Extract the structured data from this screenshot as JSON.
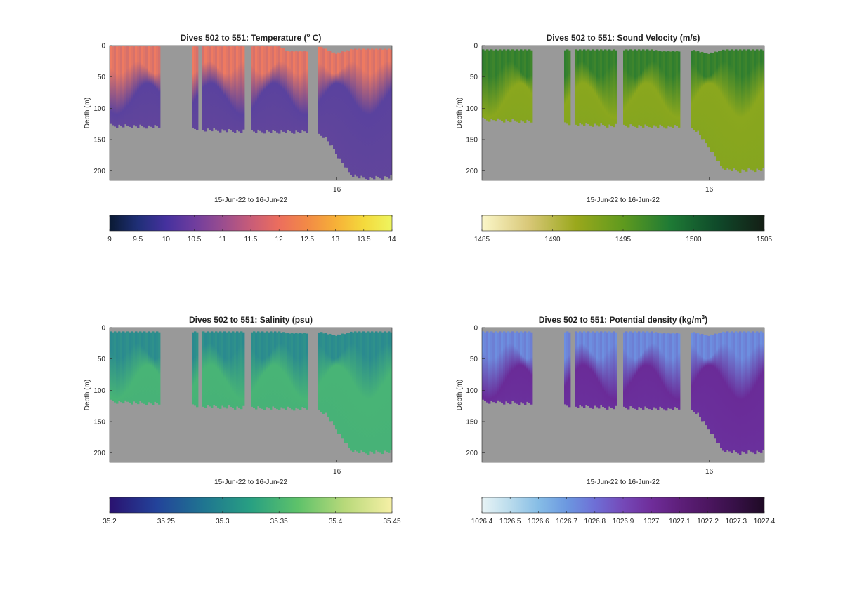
{
  "figure": {
    "background": "#ffffff",
    "mask_color": "#999999"
  },
  "chart_data": [
    {
      "type": "heatmap",
      "title": {
        "main": "Dives 502 to 551: Temperature (",
        "sup": "o",
        "tail": " C)"
      },
      "xlabel": "15-Jun-22 to 16-Jun-22",
      "ylabel": "Depth (m)",
      "xticks": [
        {
          "label": "16",
          "frac": 0.805
        }
      ],
      "yticks": [
        0,
        50,
        100,
        150,
        200
      ],
      "ylim": [
        0,
        215
      ],
      "colorbar": {
        "ticks": [
          "9",
          "9.5",
          "10",
          "10.5",
          "11",
          "11.5",
          "12",
          "12.5",
          "13",
          "13.5",
          "14"
        ],
        "colors": [
          "#0a1a33",
          "#1f2f77",
          "#45319e",
          "#6f3d9e",
          "#9a4d8f",
          "#c85c78",
          "#ec6e5d",
          "#f28a46",
          "#f6b038",
          "#f4d93c",
          "#eef560"
        ]
      },
      "surface": {
        "color": "#ee7a61",
        "depth": [
          25,
          45
        ]
      },
      "deep": {
        "color": "#5a429e",
        "depth": [
          60,
          110
        ]
      },
      "gaps": [
        [
          0.18,
          0.26
        ],
        [
          0.262,
          0.29
        ],
        [
          0.31,
          0.33
        ],
        [
          0.48,
          0.5
        ],
        [
          0.7,
          0.74
        ]
      ],
      "bottom": [
        [
          0.0,
          128
        ],
        [
          0.18,
          130
        ],
        [
          0.45,
          137
        ],
        [
          0.72,
          138
        ],
        [
          0.76,
          145
        ],
        [
          0.8,
          170
        ],
        [
          0.85,
          205
        ],
        [
          0.9,
          212
        ],
        [
          1.0,
          210
        ]
      ],
      "top": [
        [
          0.0,
          0
        ],
        [
          0.6,
          0
        ],
        [
          0.63,
          8
        ],
        [
          0.7,
          8
        ],
        [
          0.74,
          0
        ],
        [
          0.8,
          12
        ],
        [
          0.86,
          5
        ],
        [
          1.0,
          5
        ]
      ]
    },
    {
      "type": "heatmap",
      "title": {
        "main": "Dives 502 to 551: Sound Velocity (m/s)",
        "sup": "",
        "tail": ""
      },
      "xlabel": "15-Jun-22 to 16-Jun-22",
      "ylabel": "Depth (m)",
      "xticks": [
        {
          "label": "16",
          "frac": 0.805
        }
      ],
      "yticks": [
        0,
        50,
        100,
        150,
        200
      ],
      "ylim": [
        0,
        215
      ],
      "colorbar": {
        "ticks": [
          "1485",
          "1490",
          "1495",
          "1500",
          "1505"
        ],
        "colors": [
          "#fbf7c9",
          "#d8c777",
          "#9aa81c",
          "#5f9a1e",
          "#1e7a35",
          "#0f4a2a",
          "#141e15"
        ]
      },
      "surface": {
        "color": "#2f7e2f",
        "depth": [
          25,
          50
        ]
      },
      "deep": {
        "color": "#8aa71e",
        "depth": [
          60,
          115
        ]
      },
      "gaps": [
        [
          0.18,
          0.26
        ],
        [
          0.262,
          0.29
        ],
        [
          0.31,
          0.33
        ],
        [
          0.48,
          0.5
        ],
        [
          0.7,
          0.74
        ]
      ],
      "bottom": [
        [
          0.0,
          118
        ],
        [
          0.18,
          122
        ],
        [
          0.45,
          128
        ],
        [
          0.72,
          130
        ],
        [
          0.76,
          135
        ],
        [
          0.8,
          160
        ],
        [
          0.85,
          195
        ],
        [
          0.9,
          200
        ],
        [
          1.0,
          198
        ]
      ],
      "top": [
        [
          0.0,
          6
        ],
        [
          0.6,
          6
        ],
        [
          0.63,
          8
        ],
        [
          0.7,
          8
        ],
        [
          0.74,
          6
        ],
        [
          0.8,
          12
        ],
        [
          0.86,
          6
        ],
        [
          1.0,
          6
        ]
      ]
    },
    {
      "type": "heatmap",
      "title": {
        "main": "Dives 502 to 551: Salinity (psu)",
        "sup": "",
        "tail": ""
      },
      "xlabel": "15-Jun-22 to 16-Jun-22",
      "ylabel": "Depth (m)",
      "xticks": [
        {
          "label": "16",
          "frac": 0.805
        }
      ],
      "yticks": [
        0,
        50,
        100,
        150,
        200
      ],
      "ylim": [
        0,
        215
      ],
      "colorbar": {
        "ticks": [
          "35.2",
          "35.25",
          "35.3",
          "35.35",
          "35.4",
          "35.45"
        ],
        "colors": [
          "#2a1270",
          "#23439a",
          "#1f7591",
          "#28a082",
          "#5ec26a",
          "#b8d97a",
          "#f6f0a6"
        ]
      },
      "surface": {
        "color": "#2a8a8f",
        "depth": [
          25,
          50
        ]
      },
      "deep": {
        "color": "#48b476",
        "depth": [
          60,
          115
        ]
      },
      "gaps": [
        [
          0.18,
          0.26
        ],
        [
          0.262,
          0.29
        ],
        [
          0.31,
          0.33
        ],
        [
          0.48,
          0.5
        ],
        [
          0.7,
          0.74
        ]
      ],
      "bottom": [
        [
          0.0,
          118
        ],
        [
          0.18,
          122
        ],
        [
          0.45,
          128
        ],
        [
          0.72,
          130
        ],
        [
          0.76,
          135
        ],
        [
          0.8,
          160
        ],
        [
          0.85,
          195
        ],
        [
          0.9,
          200
        ],
        [
          1.0,
          198
        ]
      ],
      "top": [
        [
          0.0,
          6
        ],
        [
          0.6,
          6
        ],
        [
          0.63,
          8
        ],
        [
          0.7,
          8
        ],
        [
          0.74,
          6
        ],
        [
          0.8,
          12
        ],
        [
          0.86,
          6
        ],
        [
          1.0,
          6
        ]
      ]
    },
    {
      "type": "heatmap",
      "title": {
        "main": "Dives 502 to 551: Potential density (kg/m",
        "sup": "3",
        "tail": ")"
      },
      "xlabel": "15-Jun-22 to 16-Jun-22",
      "ylabel": "Depth (m)",
      "xticks": [
        {
          "label": "16",
          "frac": 0.805
        }
      ],
      "yticks": [
        0,
        50,
        100,
        150,
        200
      ],
      "ylim": [
        0,
        215
      ],
      "colorbar": {
        "ticks": [
          "1026.4",
          "1026.5",
          "1026.6",
          "1026.7",
          "1026.8",
          "1026.9",
          "1027",
          "1027.1",
          "1027.2",
          "1027.3",
          "1027.4"
        ],
        "colors": [
          "#e8f4f6",
          "#b9dbec",
          "#86bde6",
          "#6c98e0",
          "#6e6fd6",
          "#7549b8",
          "#6f2d9a",
          "#5e1f7a",
          "#4c1660",
          "#361046",
          "#1e0a24"
        ]
      },
      "surface": {
        "color": "#6d8fe0",
        "depth": [
          25,
          50
        ]
      },
      "deep": {
        "color": "#6a2b98",
        "depth": [
          60,
          115
        ]
      },
      "gaps": [
        [
          0.18,
          0.26
        ],
        [
          0.262,
          0.29
        ],
        [
          0.31,
          0.33
        ],
        [
          0.48,
          0.5
        ],
        [
          0.7,
          0.74
        ]
      ],
      "bottom": [
        [
          0.0,
          118
        ],
        [
          0.18,
          122
        ],
        [
          0.45,
          128
        ],
        [
          0.72,
          130
        ],
        [
          0.76,
          135
        ],
        [
          0.8,
          160
        ],
        [
          0.85,
          195
        ],
        [
          0.9,
          200
        ],
        [
          1.0,
          198
        ]
      ],
      "top": [
        [
          0.0,
          6
        ],
        [
          0.6,
          6
        ],
        [
          0.63,
          8
        ],
        [
          0.7,
          8
        ],
        [
          0.74,
          6
        ],
        [
          0.8,
          12
        ],
        [
          0.86,
          6
        ],
        [
          1.0,
          6
        ]
      ]
    }
  ]
}
